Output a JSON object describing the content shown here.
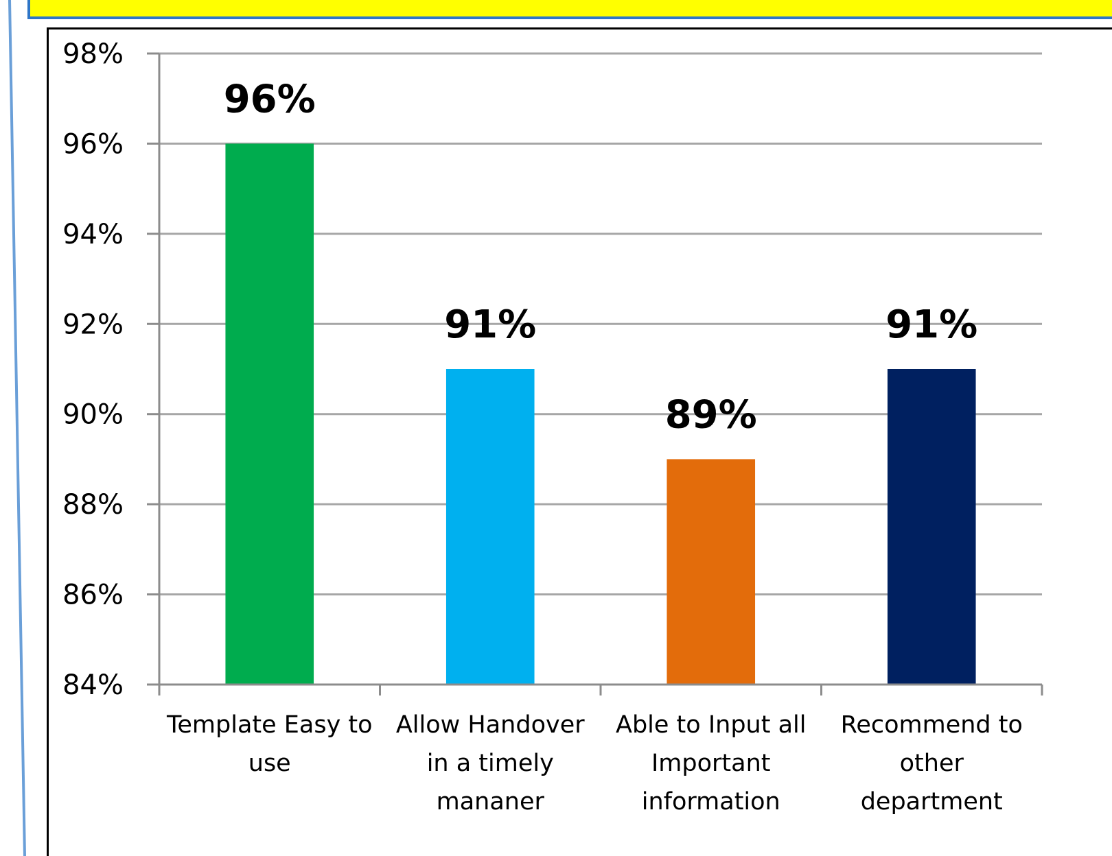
{
  "chart_data": {
    "type": "bar",
    "title": "",
    "xlabel": "",
    "ylabel": "",
    "categories": [
      [
        "Template Easy to",
        "use"
      ],
      [
        "Allow Handover",
        "in a timely",
        "mananer"
      ],
      [
        "Able to Input all",
        "Important",
        "information"
      ],
      [
        "Recommend to",
        "other",
        "department"
      ]
    ],
    "values": [
      96,
      91,
      89,
      91
    ],
    "data_labels": [
      "96%",
      "91%",
      "89%",
      "91%"
    ],
    "bar_colors": [
      "#00ac4e",
      "#00b0ef",
      "#e36c0b",
      "#002060"
    ],
    "ylim": [
      84,
      98
    ],
    "y_ticks": [
      98,
      96,
      94,
      92,
      90,
      88,
      86,
      84
    ],
    "y_tick_labels": [
      "98%",
      "96%",
      "94%",
      "92%",
      "90%",
      "88%",
      "86%",
      "84%"
    ],
    "grid": true,
    "legend": "none"
  },
  "colors": {
    "banner_fill": "#ffff00",
    "banner_border": "#2e75c7",
    "left_rule": "#6a9fd8",
    "gridline": "#a6a6a6",
    "axis": "#8c8c8c"
  }
}
